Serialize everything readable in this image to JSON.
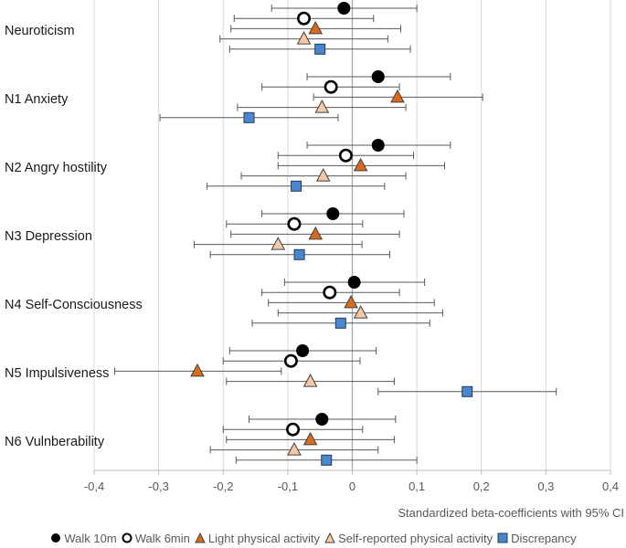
{
  "chart_data": {
    "type": "forest",
    "xlabel": "Standardized beta-coefficients with 95% CI",
    "xlim": [
      -0.4,
      0.4
    ],
    "x_ticks": [
      "-0,4",
      "-0,3",
      "-0,2",
      "-0,1",
      "0",
      "0,1",
      "0,2",
      "0,3",
      "0,4"
    ],
    "categories": [
      "Neuroticism",
      "N1 Anxiety",
      "N2 Angry hostility",
      "N3 Depression",
      "N4 Self-Consciousness",
      "N5 Impulsiveness",
      "N6 Vulnberability"
    ],
    "series": [
      {
        "name": "Walk 10m",
        "marker": "filled-circle",
        "color": "#000000",
        "values": [
          -0.013,
          0.04,
          0.04,
          -0.03,
          0.003,
          -0.077,
          -0.047
        ],
        "ci_low": [
          -0.125,
          -0.07,
          -0.07,
          -0.14,
          -0.105,
          -0.19,
          -0.16
        ],
        "ci_high": [
          0.1,
          0.152,
          0.152,
          0.08,
          0.112,
          0.037,
          0.067
        ]
      },
      {
        "name": "Walk 6min",
        "marker": "open-circle",
        "color": "#000000",
        "values": [
          -0.075,
          -0.033,
          -0.01,
          -0.09,
          -0.035,
          -0.095,
          -0.092
        ],
        "ci_low": [
          -0.183,
          -0.14,
          -0.115,
          -0.195,
          -0.14,
          -0.2,
          -0.2
        ],
        "ci_high": [
          0.033,
          0.073,
          0.095,
          0.016,
          0.073,
          0.012,
          0.016
        ]
      },
      {
        "name": "Light physical activity",
        "marker": "triangle",
        "color": "#d96a1e",
        "values": [
          -0.057,
          0.07,
          0.013,
          -0.057,
          -0.002,
          -0.24,
          -0.065
        ],
        "ci_low": [
          -0.188,
          -0.06,
          -0.115,
          -0.188,
          -0.13,
          -0.368,
          -0.195
        ],
        "ci_high": [
          0.075,
          0.202,
          0.143,
          0.073,
          0.127,
          -0.11,
          0.065
        ]
      },
      {
        "name": "Self-reported physical activity",
        "marker": "triangle",
        "color": "#f6c9a4",
        "values": [
          -0.075,
          -0.047,
          -0.045,
          -0.115,
          0.013,
          -0.065,
          -0.09
        ],
        "ci_low": [
          -0.205,
          -0.178,
          -0.172,
          -0.245,
          -0.115,
          -0.195,
          -0.22
        ],
        "ci_high": [
          0.055,
          0.083,
          0.083,
          0.015,
          0.14,
          0.065,
          0.04
        ]
      },
      {
        "name": "Discrepancy",
        "marker": "square",
        "color": "#4a86cb",
        "values": [
          -0.05,
          -0.16,
          -0.087,
          -0.082,
          -0.018,
          0.178,
          -0.04
        ],
        "ci_low": [
          -0.19,
          -0.298,
          -0.225,
          -0.22,
          -0.155,
          0.04,
          -0.18
        ],
        "ci_high": [
          0.09,
          -0.022,
          0.05,
          0.058,
          0.12,
          0.316,
          0.1
        ]
      }
    ]
  }
}
